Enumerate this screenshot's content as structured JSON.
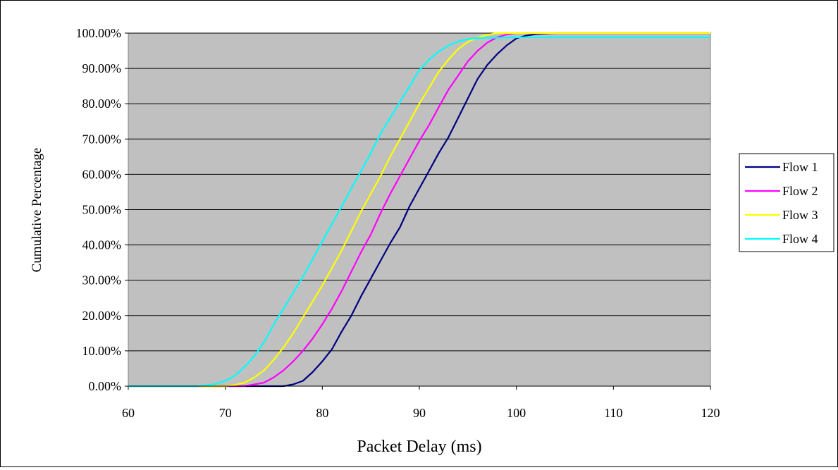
{
  "chart_data": {
    "type": "line",
    "title": "",
    "xlabel": "Packet Delay (ms)",
    "ylabel": "Cumulative Percentage",
    "xlim": [
      60,
      120
    ],
    "ylim": [
      0,
      100
    ],
    "x_ticks": [
      "60",
      "70",
      "80",
      "90",
      "100",
      "110",
      "120"
    ],
    "y_ticks": [
      "0.00%",
      "10.00%",
      "20.00%",
      "30.00%",
      "40.00%",
      "50.00%",
      "60.00%",
      "70.00%",
      "80.00%",
      "90.00%",
      "100.00%"
    ],
    "grid": "horizontal",
    "plot_background": "#c0c0c0",
    "legend_position": "right",
    "series": [
      {
        "name": "Flow 1",
        "color": "#000080",
        "points": [
          [
            60,
            0
          ],
          [
            76,
            0
          ],
          [
            77,
            0.5
          ],
          [
            78,
            1.5
          ],
          [
            79,
            4
          ],
          [
            80,
            7
          ],
          [
            81,
            10.5
          ],
          [
            82,
            15.5
          ],
          [
            83,
            20
          ],
          [
            84,
            25.5
          ],
          [
            85,
            30.5
          ],
          [
            86,
            35.5
          ],
          [
            87,
            40.5
          ],
          [
            88,
            45
          ],
          [
            89,
            51
          ],
          [
            90,
            56
          ],
          [
            91,
            61
          ],
          [
            92,
            66
          ],
          [
            93,
            70.5
          ],
          [
            94,
            76
          ],
          [
            95,
            81.5
          ],
          [
            96,
            87
          ],
          [
            97,
            91
          ],
          [
            98,
            94
          ],
          [
            99,
            96.5
          ],
          [
            100,
            98.5
          ],
          [
            101,
            99.3
          ],
          [
            102,
            99.7
          ],
          [
            104,
            100
          ],
          [
            120,
            100
          ]
        ]
      },
      {
        "name": "Flow 2",
        "color": "#ff00ff",
        "points": [
          [
            60,
            0
          ],
          [
            72,
            0
          ],
          [
            73,
            0.5
          ],
          [
            74,
            1
          ],
          [
            75,
            2.5
          ],
          [
            76,
            4.5
          ],
          [
            77,
            7
          ],
          [
            78,
            10
          ],
          [
            79,
            13.5
          ],
          [
            80,
            17.5
          ],
          [
            81,
            22
          ],
          [
            82,
            27
          ],
          [
            83,
            32.5
          ],
          [
            84,
            38
          ],
          [
            85,
            43
          ],
          [
            86,
            49
          ],
          [
            87,
            54.5
          ],
          [
            88,
            59.5
          ],
          [
            89,
            64.5
          ],
          [
            90,
            69.5
          ],
          [
            91,
            74
          ],
          [
            92,
            79
          ],
          [
            93,
            84
          ],
          [
            94,
            88
          ],
          [
            95,
            92
          ],
          [
            96,
            95
          ],
          [
            97,
            97.3
          ],
          [
            98,
            98.8
          ],
          [
            99,
            99.6
          ],
          [
            100,
            100
          ],
          [
            120,
            100
          ]
        ]
      },
      {
        "name": "Flow 3",
        "color": "#ffff00",
        "points": [
          [
            60,
            0
          ],
          [
            70,
            0
          ],
          [
            71,
            0.3
          ],
          [
            72,
            1
          ],
          [
            73,
            2.5
          ],
          [
            74,
            4.5
          ],
          [
            75,
            7.5
          ],
          [
            76,
            11
          ],
          [
            77,
            15
          ],
          [
            78,
            19.5
          ],
          [
            79,
            24
          ],
          [
            80,
            28.5
          ],
          [
            81,
            33.5
          ],
          [
            82,
            38.5
          ],
          [
            83,
            44
          ],
          [
            84,
            49.5
          ],
          [
            85,
            54.5
          ],
          [
            86,
            59.5
          ],
          [
            87,
            65
          ],
          [
            88,
            70
          ],
          [
            89,
            75
          ],
          [
            90,
            80
          ],
          [
            91,
            84.5
          ],
          [
            92,
            89
          ],
          [
            93,
            92.5
          ],
          [
            94,
            95.5
          ],
          [
            95,
            97.5
          ],
          [
            96,
            98.8
          ],
          [
            97,
            99.5
          ],
          [
            98,
            100
          ],
          [
            120,
            100
          ]
        ]
      },
      {
        "name": "Flow 4",
        "color": "#00ffff",
        "points": [
          [
            60,
            0
          ],
          [
            67,
            0
          ],
          [
            68,
            0.2
          ],
          [
            69,
            0.6
          ],
          [
            70,
            1.5
          ],
          [
            71,
            3
          ],
          [
            72,
            5.5
          ],
          [
            73,
            8.5
          ],
          [
            74,
            12.5
          ],
          [
            75,
            17.5
          ],
          [
            76,
            22
          ],
          [
            77,
            26.5
          ],
          [
            78,
            31
          ],
          [
            79,
            36
          ],
          [
            80,
            41
          ],
          [
            81,
            46
          ],
          [
            82,
            51
          ],
          [
            83,
            56
          ],
          [
            84,
            61
          ],
          [
            85,
            66
          ],
          [
            86,
            71.5
          ],
          [
            87,
            76
          ],
          [
            88,
            80.5
          ],
          [
            89,
            85
          ],
          [
            90,
            89.5
          ],
          [
            91,
            92.5
          ],
          [
            92,
            94.8
          ],
          [
            93,
            96.5
          ],
          [
            94,
            97.6
          ],
          [
            95,
            98.3
          ],
          [
            96,
            98.6
          ],
          [
            100,
            98.8
          ],
          [
            120,
            98.8
          ]
        ]
      }
    ]
  }
}
